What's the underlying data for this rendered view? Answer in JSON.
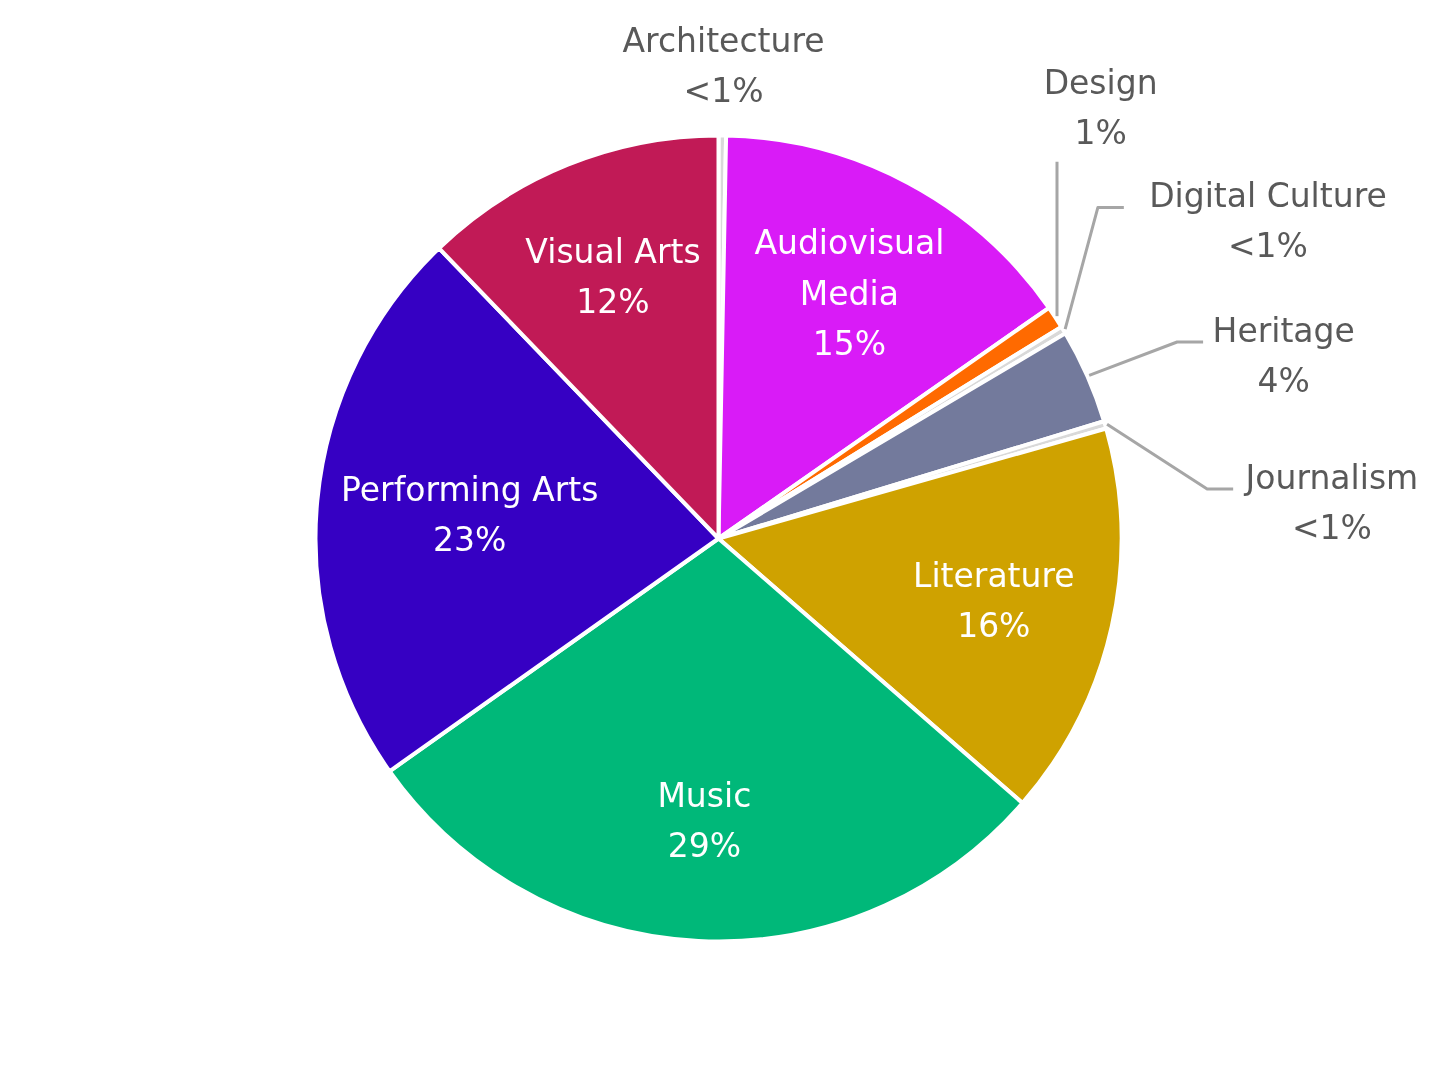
{
  "chart_data": {
    "type": "pie",
    "categories": [
      "Architecture",
      "Audiovisual Media",
      "Design",
      "Digital Culture",
      "Heritage",
      "Journalism",
      "Literature",
      "Music",
      "Performing Arts",
      "Visual Arts"
    ],
    "values": [
      0.3,
      15.0,
      0.9,
      0.3,
      3.8,
      0.3,
      15.8,
      28.8,
      22.6,
      12.2
    ],
    "colors": [
      "#d9d9d9",
      "#d91bf7",
      "#ff6a00",
      "#d9d9d9",
      "#737a9c",
      "#d9d9d9",
      "#cfa200",
      "#00b879",
      "#3600c3",
      "#c11a56"
    ],
    "value_labels": [
      "<1%",
      "15%",
      "1%",
      "<1%",
      "4%",
      "<1%",
      "16%",
      "29%",
      "23%",
      "12%"
    ]
  }
}
